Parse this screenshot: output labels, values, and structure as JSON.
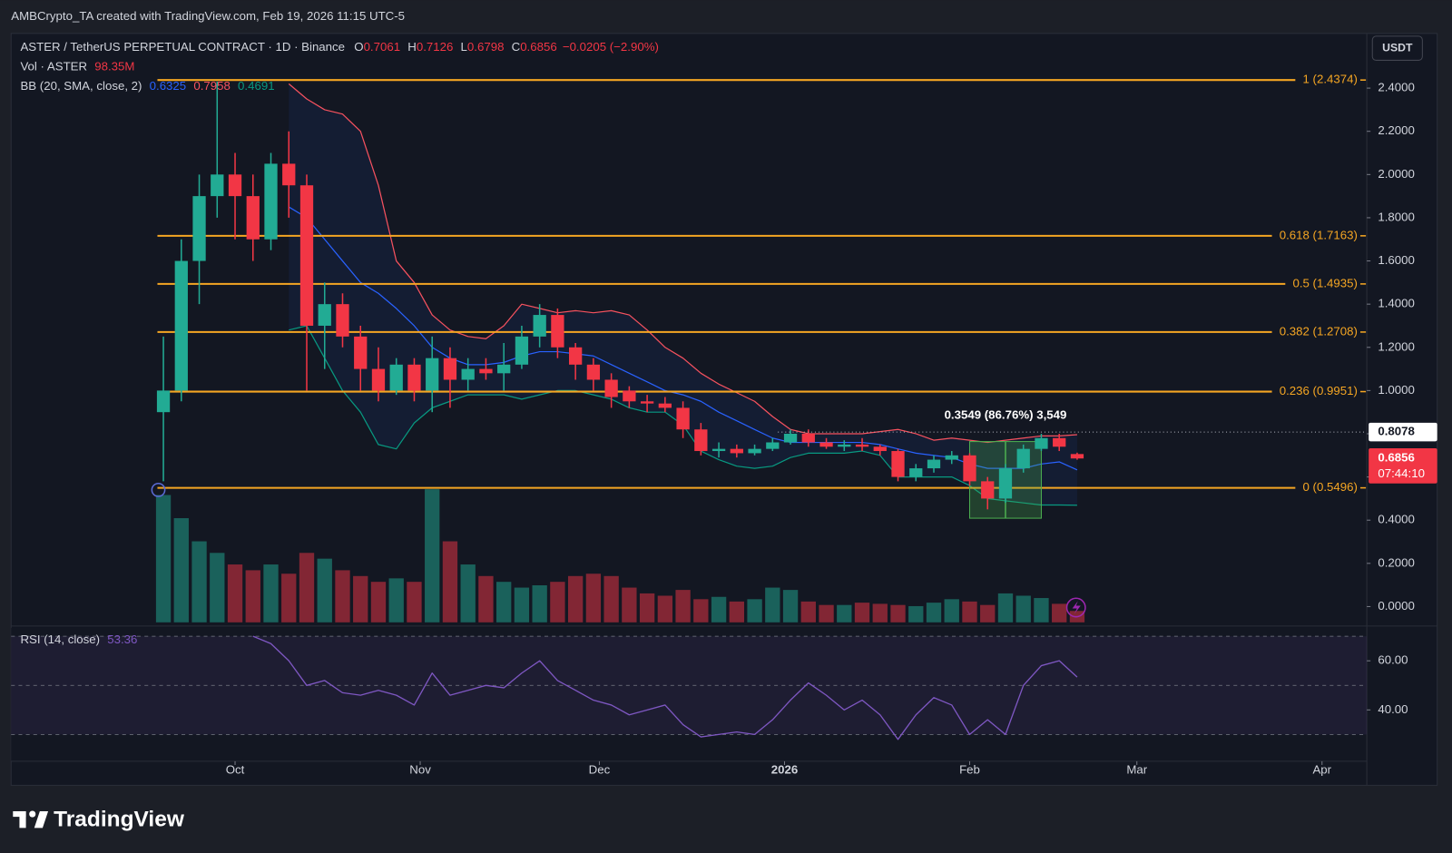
{
  "header": {
    "attribution": "AMBCrypto_TA created with TradingView.com, Feb 19, 2026 11:15 UTC-5",
    "currency_button": "USDT"
  },
  "legend": {
    "symbol": "ASTER / TetherUS PERPETUAL CONTRACT · 1D · Binance",
    "open_key": "O",
    "open": "0.7061",
    "high_key": "H",
    "high": "0.7126",
    "low_key": "L",
    "low": "0.6798",
    "close_key": "C",
    "close": "0.6856",
    "change": "−0.0205 (−2.90%)",
    "volume_name": "Vol · ASTER",
    "volume": "98.35M",
    "bb_name": "BB (20, SMA, close, 2)",
    "bb_basis": "0.6325",
    "bb_upper": "0.7958",
    "bb_lower": "0.4691",
    "rsi_name": "RSI (14, close)",
    "rsi": "53.36"
  },
  "footer": {
    "brand": "TradingView"
  },
  "chart_data": {
    "type": "candlestick",
    "up_color": "#22ab94",
    "down_color": "#f23645",
    "grid": false,
    "x": [
      -12,
      -9,
      -6,
      -3,
      0,
      3,
      6,
      9,
      12,
      15,
      18,
      21,
      24,
      27,
      30,
      33,
      36,
      39,
      42,
      45,
      48,
      51,
      54,
      57,
      60,
      63,
      66,
      69,
      72,
      75,
      78,
      81,
      84,
      87,
      90,
      93,
      96,
      99,
      102,
      105,
      108,
      111,
      114,
      117,
      120,
      123,
      126,
      129,
      132,
      135,
      138,
      141
    ],
    "open": [
      0.9,
      1.0,
      1.6,
      1.9,
      2.0,
      1.9,
      1.7,
      2.05,
      1.95,
      1.3,
      1.4,
      1.25,
      1.1,
      1.0,
      1.12,
      1.0,
      1.15,
      1.05,
      1.1,
      1.08,
      1.12,
      1.25,
      1.35,
      1.2,
      1.12,
      1.05,
      1.0,
      0.95,
      0.94,
      0.92,
      0.82,
      0.72,
      0.73,
      0.71,
      0.73,
      0.76,
      0.8,
      0.76,
      0.74,
      0.75,
      0.74,
      0.72,
      0.6,
      0.64,
      0.68,
      0.7,
      0.58,
      0.5,
      0.64,
      0.73,
      0.78,
      0.7061
    ],
    "high": [
      1.25,
      1.7,
      2.0,
      2.43,
      2.1,
      2.0,
      2.1,
      2.2,
      2.0,
      1.5,
      1.45,
      1.3,
      1.2,
      1.15,
      1.15,
      1.25,
      1.2,
      1.15,
      1.15,
      1.22,
      1.3,
      1.4,
      1.38,
      1.22,
      1.15,
      1.08,
      1.02,
      0.98,
      0.97,
      0.95,
      0.85,
      0.76,
      0.75,
      0.75,
      0.78,
      0.82,
      0.82,
      0.78,
      0.77,
      0.78,
      0.75,
      0.73,
      0.66,
      0.7,
      0.72,
      0.71,
      0.6,
      0.66,
      0.75,
      0.8,
      0.8,
      0.7126
    ],
    "low": [
      0.58,
      0.95,
      1.4,
      1.8,
      1.7,
      1.6,
      1.65,
      1.8,
      1.0,
      1.1,
      1.2,
      1.0,
      0.95,
      0.98,
      0.95,
      0.9,
      0.92,
      1.0,
      1.05,
      1.0,
      1.1,
      1.2,
      1.15,
      1.05,
      1.0,
      0.92,
      0.92,
      0.9,
      0.9,
      0.78,
      0.7,
      0.69,
      0.69,
      0.7,
      0.72,
      0.75,
      0.74,
      0.73,
      0.72,
      0.72,
      0.7,
      0.58,
      0.58,
      0.62,
      0.66,
      0.56,
      0.45,
      0.48,
      0.62,
      0.72,
      0.72,
      0.6798
    ],
    "close": [
      1.0,
      1.6,
      1.9,
      2.0,
      1.9,
      1.7,
      2.05,
      1.95,
      1.3,
      1.4,
      1.25,
      1.1,
      1.0,
      1.12,
      1.0,
      1.15,
      1.05,
      1.1,
      1.08,
      1.12,
      1.25,
      1.35,
      1.2,
      1.12,
      1.05,
      0.97,
      0.95,
      0.94,
      0.92,
      0.82,
      0.72,
      0.73,
      0.71,
      0.73,
      0.76,
      0.8,
      0.76,
      0.74,
      0.75,
      0.74,
      0.72,
      0.6,
      0.64,
      0.68,
      0.7,
      0.58,
      0.5,
      0.64,
      0.73,
      0.78,
      0.74,
      0.6856
    ],
    "xlim": [
      -37.5,
      189.5
    ],
    "xticks": [
      {
        "value": 0,
        "label": "Oct"
      },
      {
        "value": 31,
        "label": "Nov"
      },
      {
        "value": 61,
        "label": "Dec"
      },
      {
        "value": 92,
        "label": "2026"
      },
      {
        "value": 123,
        "label": "Feb"
      },
      {
        "value": 151,
        "label": "Mar"
      },
      {
        "value": 182,
        "label": "Apr"
      }
    ],
    "ylim": [
      -0.073,
      2.636
    ],
    "yticks": [
      {
        "value": 0,
        "label": "0.0000"
      },
      {
        "value": 0.2,
        "label": "0.2000"
      },
      {
        "value": 0.4,
        "label": "0.4000"
      },
      {
        "value": 0.6,
        "label": "0.6000"
      },
      {
        "value": 0.8,
        "label": "0.8000"
      },
      {
        "value": 1,
        "label": "1.0000"
      },
      {
        "value": 1.2,
        "label": "1.2000"
      },
      {
        "value": 1.4,
        "label": "1.4000"
      },
      {
        "value": 1.6,
        "label": "1.6000"
      },
      {
        "value": 1.8,
        "label": "1.8000"
      },
      {
        "value": 2,
        "label": "2.0000"
      },
      {
        "value": 2.2,
        "label": "2.2000"
      },
      {
        "value": 2.4,
        "label": "2.4000"
      }
    ],
    "bollinger": {
      "upper_color": "#f7525f",
      "basis_color": "#2962ff",
      "lower_color": "#089981",
      "upper": [
        null,
        null,
        null,
        null,
        null,
        null,
        null,
        2.42,
        2.35,
        2.3,
        2.28,
        2.2,
        1.95,
        1.6,
        1.5,
        1.35,
        1.28,
        1.25,
        1.24,
        1.3,
        1.4,
        1.38,
        1.36,
        1.37,
        1.36,
        1.37,
        1.35,
        1.28,
        1.2,
        1.15,
        1.08,
        1.03,
        0.99,
        0.95,
        0.88,
        0.82,
        0.8,
        0.8,
        0.8,
        0.8,
        0.81,
        0.82,
        0.8,
        0.77,
        0.78,
        0.77,
        0.76,
        0.77,
        0.78,
        0.79,
        0.79,
        0.7958
      ],
      "basis": [
        null,
        null,
        null,
        null,
        null,
        null,
        null,
        1.85,
        1.8,
        1.7,
        1.6,
        1.5,
        1.45,
        1.38,
        1.3,
        1.2,
        1.15,
        1.12,
        1.12,
        1.13,
        1.16,
        1.18,
        1.18,
        1.17,
        1.16,
        1.12,
        1.08,
        1.04,
        1.0,
        0.98,
        0.95,
        0.9,
        0.86,
        0.82,
        0.78,
        0.76,
        0.76,
        0.76,
        0.76,
        0.76,
        0.75,
        0.73,
        0.71,
        0.7,
        0.69,
        0.66,
        0.64,
        0.64,
        0.64,
        0.66,
        0.67,
        0.6325
      ],
      "lower": [
        null,
        null,
        null,
        null,
        null,
        null,
        null,
        1.28,
        1.3,
        1.15,
        1.0,
        0.9,
        0.75,
        0.73,
        0.85,
        0.92,
        0.95,
        0.98,
        0.98,
        0.98,
        0.96,
        0.98,
        1.0,
        1.0,
        0.98,
        0.96,
        0.92,
        0.9,
        0.9,
        0.84,
        0.72,
        0.68,
        0.65,
        0.64,
        0.65,
        0.69,
        0.71,
        0.71,
        0.71,
        0.72,
        0.7,
        0.6,
        0.6,
        0.6,
        0.6,
        0.56,
        0.5,
        0.49,
        0.48,
        0.47,
        0.47,
        0.4691
      ]
    },
    "volume": {
      "values": [
        1100,
        900,
        700,
        600,
        500,
        450,
        500,
        420,
        600,
        550,
        450,
        400,
        350,
        380,
        350,
        1150,
        700,
        500,
        400,
        350,
        300,
        320,
        350,
        400,
        420,
        400,
        300,
        250,
        230,
        280,
        200,
        220,
        180,
        200,
        300,
        280,
        180,
        150,
        150,
        170,
        160,
        150,
        140,
        170,
        200,
        180,
        150,
        250,
        230,
        210,
        160,
        98.35
      ],
      "ylim": [
        0,
        1400
      ]
    },
    "fib": {
      "color": "#f5a623",
      "levels": [
        {
          "value": 2.4374,
          "label": "1 (2.4374)"
        },
        {
          "value": 1.7163,
          "label": "0.618 (1.7163)"
        },
        {
          "value": 1.4935,
          "label": "0.5 (1.4935)"
        },
        {
          "value": 1.2708,
          "label": "0.382 (1.2708)"
        },
        {
          "value": 0.9951,
          "label": "0.236 (0.9951)"
        },
        {
          "value": 0.5496,
          "label": "0 (0.5496)"
        }
      ]
    },
    "price_line": {
      "value": 0.8078,
      "label": "0.8078"
    },
    "last_price": {
      "value": 0.6856,
      "label": "0.6856",
      "countdown": "07:44:10"
    },
    "measure": {
      "x_from": 123,
      "x_to": 135,
      "from": 0.409,
      "to": 0.7639,
      "label": "0.3549 (86.76%) 3,549"
    },
    "rsi": {
      "color": "#7e57c2",
      "values": [
        null,
        null,
        null,
        null,
        null,
        70,
        67,
        60,
        50,
        52,
        47,
        46,
        48,
        46,
        42,
        55,
        46,
        48,
        50,
        49,
        55,
        60,
        52,
        48,
        44,
        42,
        38,
        40,
        42,
        34,
        29,
        30,
        31,
        30,
        36,
        44,
        51,
        46,
        40,
        44,
        38,
        28,
        38,
        45,
        42,
        30,
        36,
        30,
        50,
        58,
        60,
        53.36
      ],
      "ylim": [
        19.1,
        73.4
      ],
      "yticks": [
        {
          "value": 40,
          "label": "40.00"
        },
        {
          "value": 60,
          "label": "60.00"
        }
      ],
      "band_lines": [
        30,
        50,
        70
      ]
    }
  }
}
